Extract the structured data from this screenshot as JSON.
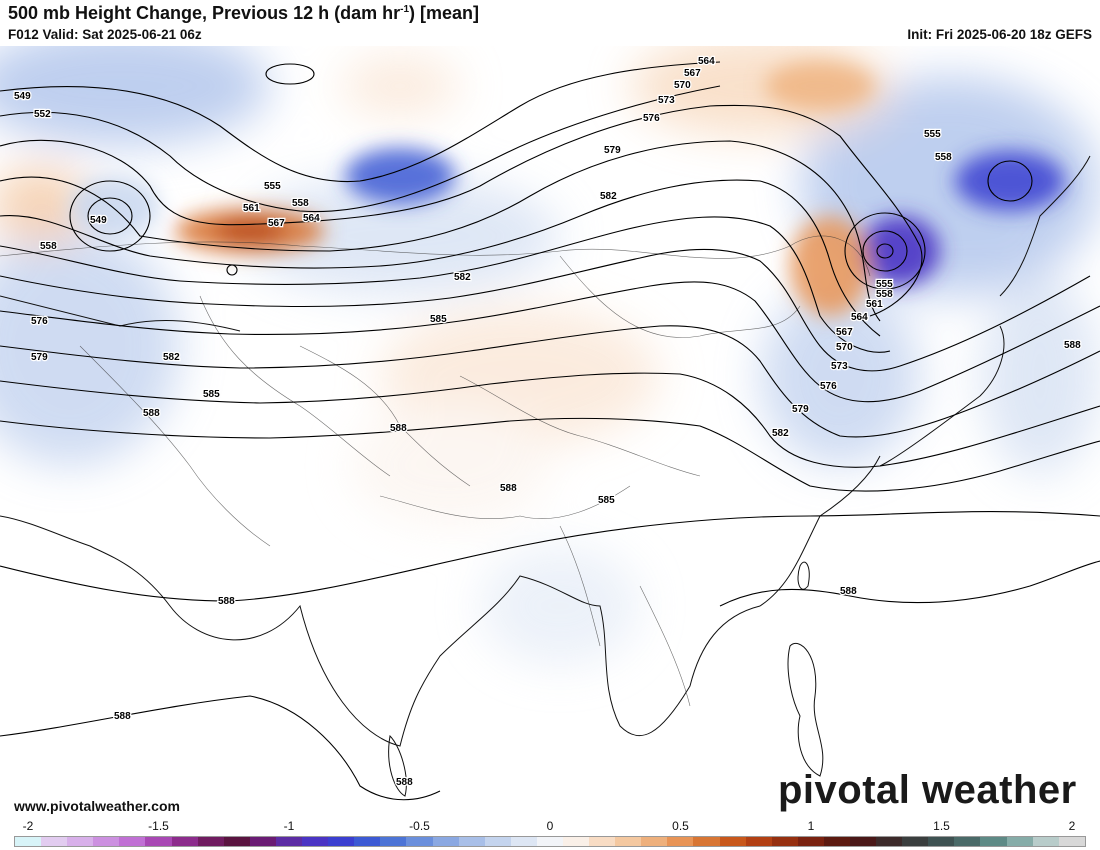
{
  "header": {
    "title_main": "500 mb Height Change, Previous 12 h (dam hr",
    "title_sup": "-1",
    "title_end": ") [mean]",
    "valid": "F012 Valid: Sat 2025-06-21 06z",
    "init": "Init: Fri 2025-06-20 18z GEFS"
  },
  "footer": {
    "url": "www.pivotalweather.com",
    "brand": "pivotal weather"
  },
  "colorbar": {
    "min": -2,
    "max": 2,
    "tick_labels": [
      "-2",
      "-1.5",
      "-1",
      "-0.5",
      "0",
      "0.5",
      "1",
      "1.5",
      "2"
    ],
    "colors": [
      "#d8f4f8",
      "#e2ccf0",
      "#d8b0ea",
      "#cc90e0",
      "#c070d4",
      "#a848b4",
      "#8c2c8c",
      "#701c60",
      "#5a1440",
      "#6a1c74",
      "#5c2ca4",
      "#4a34c4",
      "#3b3fd0",
      "#3c5ad4",
      "#4c74d6",
      "#6a8fdc",
      "#8aa8e2",
      "#a8bfe8",
      "#c4d4ee",
      "#dde6f4",
      "#f2f4f8",
      "#faf0e8",
      "#f8dcc4",
      "#f4c8a0",
      "#eeb07c",
      "#e89456",
      "#d87634",
      "#c8581c",
      "#b24014",
      "#963010",
      "#7a2210",
      "#5c1a10",
      "#4a1818",
      "#3c2a2a",
      "#3a3e3e",
      "#3e5252",
      "#4a6a68",
      "#5e8a86",
      "#86aca8",
      "#b8ccca",
      "#d8d8d8"
    ],
    "unit": "dam hr-1"
  },
  "contour_labels": [
    "549",
    "552",
    "555",
    "558",
    "561",
    "564",
    "567",
    "570",
    "573",
    "576",
    "579",
    "582",
    "585",
    "588"
  ],
  "map": {
    "land_color": "#ffffff",
    "ocean_color": "#ffffff",
    "contour_color": "#000000",
    "neg_color": "#3b3fd0",
    "pos_color": "#d87634"
  }
}
